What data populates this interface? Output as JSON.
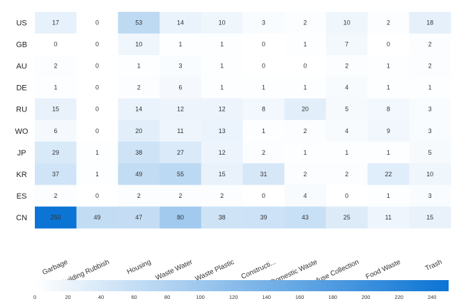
{
  "chart_data": {
    "type": "heatmap",
    "rows": [
      "US",
      "GB",
      "AU",
      "DE",
      "RU",
      "WO",
      "JP",
      "KR",
      "ES",
      "CN"
    ],
    "columns": [
      "Garbage",
      "Building Rubbish",
      "Housing",
      "Waste Water",
      "Waste Plastic",
      "Constructi...",
      "Domestic Waste",
      "Refuse Collection",
      "Food Waste",
      "Trash"
    ],
    "values": [
      [
        17,
        0,
        53,
        14,
        10,
        3,
        2,
        10,
        2,
        18
      ],
      [
        0,
        0,
        10,
        1,
        1,
        0,
        1,
        7,
        0,
        2
      ],
      [
        2,
        0,
        1,
        3,
        1,
        0,
        0,
        2,
        1,
        2
      ],
      [
        1,
        0,
        2,
        6,
        1,
        1,
        1,
        4,
        1,
        1
      ],
      [
        15,
        0,
        14,
        12,
        12,
        8,
        20,
        5,
        8,
        3
      ],
      [
        6,
        0,
        20,
        11,
        13,
        1,
        2,
        4,
        9,
        3
      ],
      [
        29,
        1,
        38,
        27,
        12,
        2,
        1,
        1,
        1,
        5
      ],
      [
        37,
        1,
        49,
        55,
        15,
        31,
        2,
        2,
        22,
        10
      ],
      [
        2,
        0,
        2,
        2,
        2,
        0,
        4,
        0,
        1,
        3
      ],
      [
        250,
        49,
        47,
        80,
        38,
        39,
        43,
        25,
        11,
        15
      ]
    ],
    "colorbar": {
      "min": 0,
      "max": 250,
      "ticks": [
        0,
        20,
        40,
        60,
        80,
        100,
        120,
        140,
        160,
        180,
        200,
        220,
        240
      ],
      "color_low": "#ffffff",
      "color_high": "#0b74d4"
    },
    "title": "",
    "xlabel": "",
    "ylabel": ""
  }
}
